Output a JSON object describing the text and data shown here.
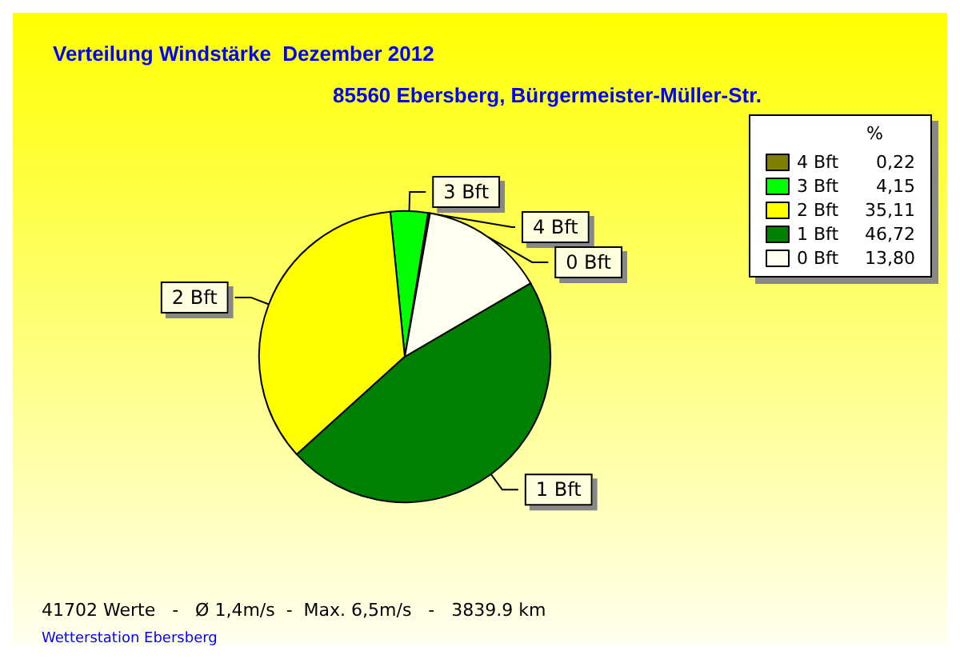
{
  "chart_data": {
    "type": "pie",
    "title": "Verteilung Windstärke  Dezember 2012",
    "subtitle": "85560 Ebersberg, Bürgermeister-Müller-Str.",
    "categories": [
      "4 Bft",
      "3 Bft",
      "2 Bft",
      "1 Bft",
      "0 Bft"
    ],
    "values": [
      0.22,
      4.15,
      35.11,
      46.72,
      13.8
    ],
    "value_labels": [
      "0,22",
      "4,15",
      "35,11",
      "46,72",
      "13,80"
    ],
    "colors": [
      "#808000",
      "#00ff00",
      "#ffff00",
      "#008000",
      "#fffff0"
    ],
    "legend": "top right",
    "legend_title": "%",
    "annotations": [
      "41702 Werte   -   Ø 1,4m/s  -  Max. 6,5m/s   -   3839.9 km",
      "Wetterstation Ebersberg"
    ]
  }
}
